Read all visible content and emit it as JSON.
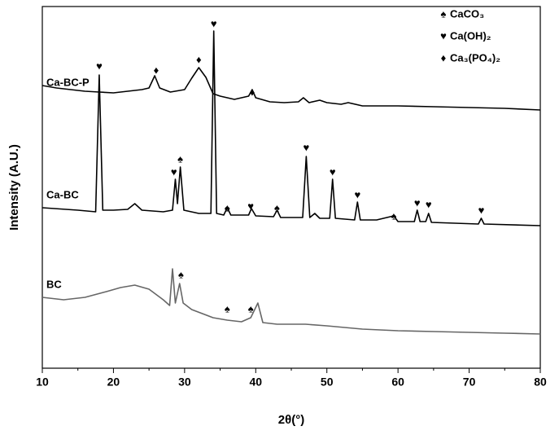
{
  "chart_data": {
    "type": "line",
    "xlabel": "2θ(°)",
    "ylabel": "Intensity (A.U.)",
    "xlim": [
      10,
      80
    ],
    "xticks": [
      10,
      20,
      30,
      40,
      50,
      60,
      70,
      80
    ],
    "xminorticks": [
      15,
      25,
      35,
      45,
      55,
      65,
      75
    ],
    "ylim": [
      0,
      444
    ],
    "series": [
      {
        "name": "Ca-BC-P",
        "color": "#000000",
        "x": [
          10,
          12,
          14,
          16,
          18,
          20,
          22,
          24,
          25,
          25.8,
          26.5,
          28,
          30,
          31,
          32,
          33,
          34,
          35,
          37,
          39,
          39.5,
          40,
          42,
          44,
          46,
          46.7,
          47.5,
          49,
          50,
          52,
          53,
          55,
          60,
          65,
          70,
          75,
          80
        ],
        "values": [
          347,
          344,
          342,
          340,
          339,
          338,
          340,
          342,
          344,
          359,
          344,
          339,
          342,
          356,
          369,
          357,
          337,
          334,
          330,
          334,
          342,
          332,
          327,
          326,
          327,
          332,
          326,
          329,
          326,
          324,
          326,
          322,
          322,
          321,
          320,
          319,
          317
        ]
      },
      {
        "name": "Ca-BC",
        "color": "#000000",
        "x": [
          10,
          15,
          17.5,
          18,
          18.5,
          20,
          22,
          23,
          24,
          27,
          28.3,
          28.7,
          29,
          29.4,
          29.9,
          32,
          33.7,
          34.1,
          34.5,
          35.5,
          36,
          36.5,
          39,
          39.4,
          40,
          42.5,
          43,
          43.5,
          46.6,
          47.1,
          47.6,
          48.3,
          49,
          50.4,
          50.8,
          51.2,
          53.9,
          54.3,
          54.7,
          57,
          59.4,
          60,
          62.3,
          62.7,
          63.1,
          63.9,
          64.3,
          64.7,
          71.3,
          71.7,
          72.1,
          80
        ],
        "values": [
          197,
          194,
          192,
          360,
          194,
          194,
          195,
          202,
          194,
          192,
          194,
          232,
          202,
          247,
          194,
          190,
          190,
          414,
          190,
          188,
          197,
          188,
          188,
          196,
          187,
          186,
          194,
          185,
          185,
          260,
          185,
          190,
          184,
          184,
          232,
          184,
          182,
          204,
          182,
          182,
          187,
          180,
          180,
          194,
          180,
          180,
          190,
          179,
          177,
          184,
          177,
          175
        ]
      },
      {
        "name": "BC",
        "color": "#666666",
        "x": [
          10,
          13,
          16,
          19,
          21,
          23,
          25,
          27,
          27.9,
          28.3,
          28.7,
          29.3,
          29.8,
          31,
          34,
          36,
          38,
          39.3,
          40.3,
          41,
          43,
          47,
          50,
          55,
          60,
          65,
          70,
          75,
          80
        ],
        "values": [
          87,
          84,
          87,
          94,
          99,
          102,
          97,
          84,
          77,
          122,
          80,
          104,
          80,
          72,
          62,
          59,
          57,
          62,
          80,
          56,
          54,
          54,
          52,
          48,
          46,
          45,
          44,
          43,
          42
        ]
      }
    ],
    "annotations": [
      {
        "text": "♥",
        "x": 18,
        "y": 370
      },
      {
        "text": "♦",
        "x": 26,
        "y": 365
      },
      {
        "text": "♦",
        "x": 32,
        "y": 378
      },
      {
        "text": "♥",
        "x": 34.1,
        "y": 422
      },
      {
        "text": "♦",
        "x": 39.5,
        "y": 338
      },
      {
        "text": "♥",
        "x": 28.5,
        "y": 240
      },
      {
        "text": "♠",
        "x": 29.4,
        "y": 256
      },
      {
        "text": "♠",
        "x": 36,
        "y": 196
      },
      {
        "text": "♥",
        "x": 39.3,
        "y": 198
      },
      {
        "text": "♠",
        "x": 43,
        "y": 196
      },
      {
        "text": "♥",
        "x": 47.1,
        "y": 270
      },
      {
        "text": "♥",
        "x": 50.8,
        "y": 240
      },
      {
        "text": "♥",
        "x": 54.3,
        "y": 212
      },
      {
        "text": "♠",
        "x": 59.4,
        "y": 186
      },
      {
        "text": "♥",
        "x": 62.7,
        "y": 202
      },
      {
        "text": "♥",
        "x": 64.3,
        "y": 200
      },
      {
        "text": "♥",
        "x": 71.7,
        "y": 193
      },
      {
        "text": "♠",
        "x": 29.5,
        "y": 114
      },
      {
        "text": "♠",
        "x": 36,
        "y": 72
      },
      {
        "text": "♠",
        "x": 39.3,
        "y": 72
      }
    ],
    "legend": [
      {
        "symbol": "♠",
        "label": "CaCO₃"
      },
      {
        "symbol": "♥",
        "label": "Ca(OH)₂"
      },
      {
        "symbol": "♦",
        "label": "Ca₃(PO₄)₂"
      }
    ]
  }
}
